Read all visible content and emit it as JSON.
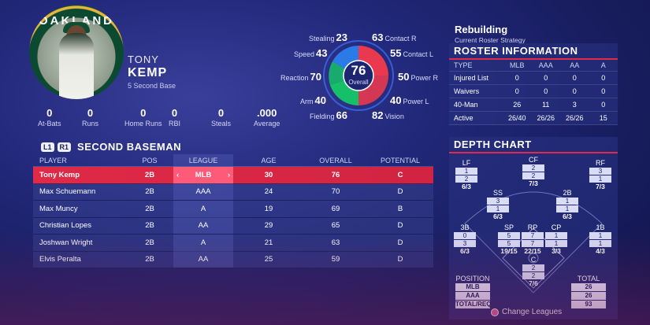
{
  "player": {
    "team_logo_text": "OAKLAND",
    "first_name": "TONY",
    "last_name": "KEMP",
    "number_position": "5  Second Base",
    "stats": [
      {
        "value": "0",
        "label": "At-Bats"
      },
      {
        "value": "0",
        "label": "Runs"
      },
      {
        "value": "0",
        "label": "Home Runs"
      },
      {
        "value": "0",
        "label": "RBI"
      },
      {
        "value": "0",
        "label": "Steals"
      },
      {
        "value": ".000",
        "label": "Average"
      }
    ]
  },
  "ratings": {
    "overall": "76",
    "overall_label": "Overall",
    "items": [
      {
        "label": "Stealing",
        "value": "23"
      },
      {
        "label": "Speed",
        "value": "43"
      },
      {
        "label": "Reaction",
        "value": "70"
      },
      {
        "label": "Arm",
        "value": "40"
      },
      {
        "label": "Fielding",
        "value": "66"
      },
      {
        "label": "Contact R",
        "value": "63"
      },
      {
        "label": "Contact L",
        "value": "55"
      },
      {
        "label": "Power R",
        "value": "50"
      },
      {
        "label": "Power L",
        "value": "40"
      },
      {
        "label": "Vision",
        "value": "82"
      }
    ],
    "colors": {
      "contact": "#e8394f",
      "power": "#e8394f",
      "defense": "#16c06a",
      "speed": "#2a7be8"
    }
  },
  "table": {
    "btn_l1": "L1",
    "btn_r1": "R1",
    "title": "SECOND BASEMAN",
    "headers": {
      "player": "PLAYER",
      "pos": "POS",
      "league": "LEAGUE",
      "age": "AGE",
      "overall": "OVERALL",
      "potential": "POTENTIAL"
    },
    "rows": [
      {
        "player": "Tony Kemp",
        "pos": "2B",
        "league": "MLB",
        "age": "30",
        "overall": "76",
        "potential": "C"
      },
      {
        "player": "Max Schuemann",
        "pos": "2B",
        "league": "AAA",
        "age": "24",
        "overall": "70",
        "potential": "D"
      },
      {
        "player": "Max Muncy",
        "pos": "2B",
        "league": "A",
        "age": "19",
        "overall": "69",
        "potential": "B"
      },
      {
        "player": "Christian Lopes",
        "pos": "2B",
        "league": "AA",
        "age": "29",
        "overall": "65",
        "potential": "D"
      },
      {
        "player": "Joshwan Wright",
        "pos": "2B",
        "league": "A",
        "age": "21",
        "overall": "63",
        "potential": "D"
      },
      {
        "player": "Elvis Peralta",
        "pos": "2B",
        "league": "AA",
        "age": "25",
        "overall": "59",
        "potential": "D"
      }
    ],
    "left_arrow": "‹",
    "right_arrow": "›"
  },
  "strategy": {
    "title": "Rebuilding",
    "subtitle": "Current Roster Strategy"
  },
  "roster": {
    "title": "ROSTER INFORMATION",
    "headers": [
      "TYPE",
      "MLB",
      "AAA",
      "AA",
      "A"
    ],
    "rows": [
      [
        "Injured List",
        "0",
        "0",
        "0",
        "0"
      ],
      [
        "Waivers",
        "0",
        "0",
        "0",
        "0"
      ],
      [
        "40-Man",
        "26",
        "11",
        "3",
        "0"
      ],
      [
        "Active",
        "26/40",
        "26/26",
        "26/26",
        "15"
      ]
    ]
  },
  "depth": {
    "title": "DEPTH CHART",
    "positions": [
      {
        "pos": "LF",
        "a": "1",
        "b": "2",
        "t": "6/3"
      },
      {
        "pos": "CF",
        "a": "2",
        "b": "2",
        "t": "7/3"
      },
      {
        "pos": "RF",
        "a": "3",
        "b": "1",
        "t": "7/3"
      },
      {
        "pos": "SS",
        "a": "3",
        "b": "1",
        "t": "6/3"
      },
      {
        "pos": "2B",
        "a": "1",
        "b": "1",
        "t": "6/3"
      },
      {
        "pos": "3B",
        "a": "0",
        "b": "3",
        "t": "6/3"
      },
      {
        "pos": "SP",
        "a": "5",
        "b": "5",
        "t": "19/15"
      },
      {
        "pos": "RP",
        "a": "7",
        "b": "7",
        "t": "22/15"
      },
      {
        "pos": "CP",
        "a": "1",
        "b": "1",
        "t": "3/3"
      },
      {
        "pos": "1B",
        "a": "1",
        "b": "1",
        "t": "4/3"
      },
      {
        "pos": "C",
        "a": "2",
        "b": "2",
        "t": "7/6"
      }
    ],
    "position_legend": {
      "label": "POSITION",
      "items": [
        "MLB",
        "AAA",
        "TOTAL/REQ"
      ]
    },
    "total_legend": {
      "label": "TOTAL",
      "items": [
        "26",
        "26",
        "93"
      ]
    }
  },
  "footer": {
    "change_leagues": "Change Leagues"
  }
}
